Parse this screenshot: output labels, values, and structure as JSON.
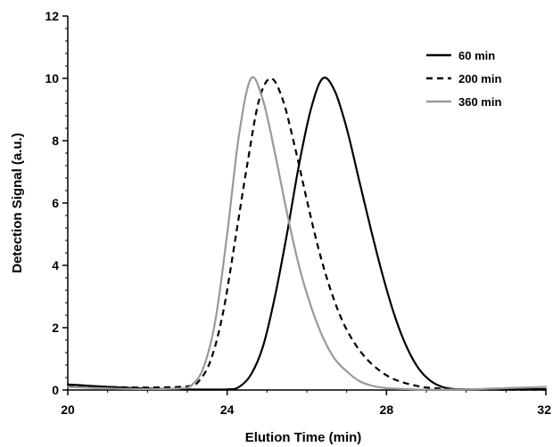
{
  "chart_data": {
    "type": "line",
    "title": "",
    "xlabel": "Elution Time (min)",
    "ylabel": "Detection Signal (a.u.)",
    "xlim": [
      20,
      32
    ],
    "ylim": [
      0,
      12
    ],
    "x_ticks": [
      20,
      24,
      28,
      32
    ],
    "x_tick_labels": [
      "20",
      "24",
      "28",
      "32"
    ],
    "y_ticks": [
      0,
      2,
      4,
      6,
      8,
      10,
      12
    ],
    "y_tick_labels": [
      "0",
      "2",
      "4",
      "6",
      "8",
      "10",
      "12"
    ],
    "grid": false,
    "legend_position": "top-right",
    "series": [
      {
        "name": "60 min",
        "color": "#000000",
        "style": "solid",
        "points": [
          [
            20.0,
            0.18
          ],
          [
            21.0,
            0.1
          ],
          [
            22.0,
            0.05
          ],
          [
            23.0,
            0.02
          ],
          [
            24.0,
            0.02
          ],
          [
            24.3,
            0.1
          ],
          [
            24.6,
            0.5
          ],
          [
            24.9,
            1.4
          ],
          [
            25.2,
            3.0
          ],
          [
            25.5,
            5.0
          ],
          [
            25.8,
            7.2
          ],
          [
            26.1,
            9.0
          ],
          [
            26.4,
            10.0
          ],
          [
            26.7,
            9.6
          ],
          [
            27.0,
            8.4
          ],
          [
            27.3,
            6.8
          ],
          [
            27.6,
            5.2
          ],
          [
            27.9,
            3.7
          ],
          [
            28.2,
            2.4
          ],
          [
            28.5,
            1.4
          ],
          [
            28.8,
            0.7
          ],
          [
            29.1,
            0.3
          ],
          [
            29.4,
            0.1
          ],
          [
            29.7,
            0.03
          ],
          [
            30.0,
            0.02
          ],
          [
            31.0,
            0.02
          ],
          [
            32.0,
            0.03
          ]
        ]
      },
      {
        "name": "200 min",
        "color": "#000000",
        "style": "dashed",
        "points": [
          [
            20.0,
            0.15
          ],
          [
            21.0,
            0.1
          ],
          [
            22.0,
            0.08
          ],
          [
            23.0,
            0.12
          ],
          [
            23.3,
            0.3
          ],
          [
            23.6,
            1.0
          ],
          [
            23.9,
            2.5
          ],
          [
            24.2,
            4.8
          ],
          [
            24.5,
            7.2
          ],
          [
            24.8,
            9.3
          ],
          [
            25.1,
            10.0
          ],
          [
            25.4,
            9.3
          ],
          [
            25.7,
            7.8
          ],
          [
            26.0,
            6.1
          ],
          [
            26.3,
            4.5
          ],
          [
            26.6,
            3.2
          ],
          [
            26.9,
            2.2
          ],
          [
            27.2,
            1.5
          ],
          [
            27.5,
            1.0
          ],
          [
            27.8,
            0.65
          ],
          [
            28.1,
            0.4
          ],
          [
            28.4,
            0.25
          ],
          [
            28.7,
            0.15
          ],
          [
            29.0,
            0.08
          ],
          [
            29.5,
            0.04
          ],
          [
            30.0,
            0.02
          ],
          [
            31.0,
            0.01
          ],
          [
            32.0,
            0.01
          ]
        ]
      },
      {
        "name": "360 min",
        "color": "#999999",
        "style": "solid",
        "points": [
          [
            20.0,
            0.1
          ],
          [
            21.0,
            0.05
          ],
          [
            22.0,
            0.03
          ],
          [
            22.8,
            0.05
          ],
          [
            23.1,
            0.15
          ],
          [
            23.4,
            0.7
          ],
          [
            23.7,
            2.2
          ],
          [
            24.0,
            5.0
          ],
          [
            24.3,
            8.2
          ],
          [
            24.6,
            10.0
          ],
          [
            24.9,
            9.3
          ],
          [
            25.2,
            7.6
          ],
          [
            25.5,
            5.7
          ],
          [
            25.8,
            4.0
          ],
          [
            26.1,
            2.7
          ],
          [
            26.4,
            1.7
          ],
          [
            26.7,
            1.0
          ],
          [
            27.0,
            0.6
          ],
          [
            27.3,
            0.3
          ],
          [
            27.6,
            0.15
          ],
          [
            28.0,
            0.06
          ],
          [
            28.5,
            0.03
          ],
          [
            29.0,
            0.01
          ],
          [
            30.0,
            0.02
          ],
          [
            31.0,
            0.06
          ],
          [
            32.0,
            0.1
          ]
        ]
      }
    ]
  }
}
